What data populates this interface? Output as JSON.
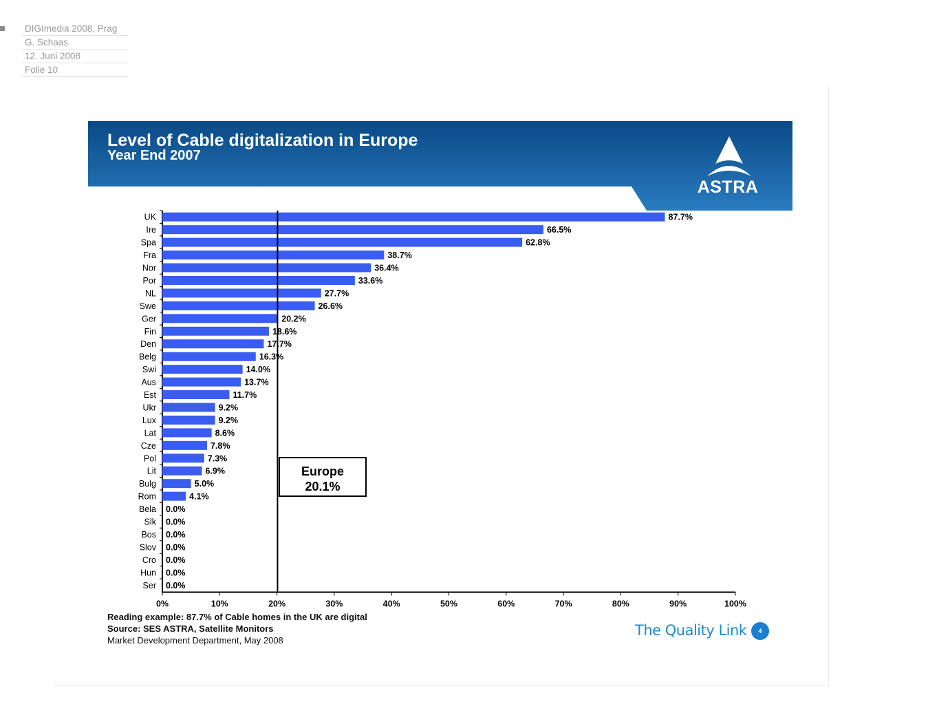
{
  "meta": {
    "event": "DIGImedia 2008, Prag",
    "author": "G. Schaas",
    "date": "12. Juni 2008",
    "slide": "Folie 10"
  },
  "banner": {
    "title": "Level of Cable digitalization in Europe",
    "subtitle": "Year End 2007",
    "logo_text": "ASTRA",
    "color_dark": "#0a4a86",
    "color_light": "#2a7bc0"
  },
  "reference": {
    "label": "Europe",
    "value_label": "20.1%"
  },
  "footer": {
    "reading_example": "Reading example: 87.7% of Cable homes in the UK are digital",
    "source": "Source: SES ASTRA, Satellite Monitors",
    "department": "Market Development Department, May 2008",
    "tagline": "The Quality Link",
    "page_number": "4"
  },
  "chart_data": {
    "type": "bar",
    "orientation": "horizontal",
    "bar_color": "#3a5cf0",
    "categories": [
      "UK",
      "Ire",
      "Spa",
      "Fra",
      "Nor",
      "Por",
      "NL",
      "Swe",
      "Ger",
      "Fin",
      "Den",
      "Belg",
      "Swi",
      "Aus",
      "Est",
      "Ukr",
      "Lux",
      "Lat",
      "Cze",
      "Pol",
      "Lit",
      "Bulg",
      "Rom",
      "Bela",
      "Slk",
      "Bos",
      "Slov",
      "Cro",
      "Hun",
      "Ser"
    ],
    "values": [
      87.7,
      66.5,
      62.8,
      38.7,
      36.4,
      33.6,
      27.7,
      26.6,
      20.2,
      18.6,
      17.7,
      16.3,
      14.0,
      13.7,
      11.7,
      9.2,
      9.2,
      8.6,
      7.8,
      7.3,
      6.9,
      5.0,
      4.1,
      0.0,
      0.0,
      0.0,
      0.0,
      0.0,
      0.0,
      0.0
    ],
    "value_labels": [
      "87.7%",
      "66.5%",
      "62.8%",
      "38.7%",
      "36.4%",
      "33.6%",
      "27.7%",
      "26.6%",
      "20.2%",
      "18.6%",
      "17.7%",
      "16.3%",
      "14.0%",
      "13.7%",
      "11.7%",
      "9.2%",
      "9.2%",
      "8.6%",
      "7.8%",
      "7.3%",
      "6.9%",
      "5.0%",
      "4.1%",
      "0.0%",
      "0.0%",
      "0.0%",
      "0.0%",
      "0.0%",
      "0.0%",
      "0.0%"
    ],
    "xlim": [
      0,
      100
    ],
    "xticks": [
      "0%",
      "10%",
      "20%",
      "30%",
      "40%",
      "50%",
      "60%",
      "70%",
      "80%",
      "90%",
      "100%"
    ],
    "reference_line": 20.1,
    "grid": false
  }
}
